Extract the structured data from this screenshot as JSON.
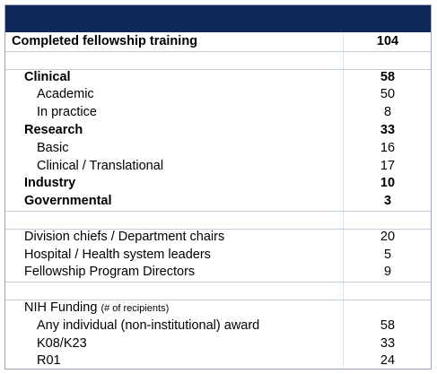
{
  "table": {
    "sections": [
      {
        "rows": [
          {
            "label": "Completed fellowship training",
            "value": 104,
            "bold": true,
            "level": 0
          }
        ]
      },
      {
        "rows": [
          {
            "label": "Clinical",
            "value": 58,
            "bold": true,
            "level": 1
          },
          {
            "label": "Academic",
            "value": 50,
            "bold": false,
            "level": 2
          },
          {
            "label": "In practice",
            "value": 8,
            "bold": false,
            "level": 2
          },
          {
            "label": "Research",
            "value": 33,
            "bold": true,
            "level": 1
          },
          {
            "label": "Basic",
            "value": 16,
            "bold": false,
            "level": 2
          },
          {
            "label": "Clinical / Translational",
            "value": 17,
            "bold": false,
            "level": 2
          },
          {
            "label": "Industry",
            "value": 10,
            "bold": true,
            "level": 1
          },
          {
            "label": "Governmental",
            "value": 3,
            "bold": true,
            "level": 1
          }
        ]
      },
      {
        "rows": [
          {
            "label": "Division chiefs / Department chairs",
            "value": 20,
            "bold": false,
            "level": 1
          },
          {
            "label": "Hospital / Health system leaders",
            "value": 5,
            "bold": false,
            "level": 1
          },
          {
            "label": "Fellowship Program Directors",
            "value": 9,
            "bold": false,
            "level": 1
          }
        ]
      },
      {
        "heading": {
          "label": "NIH Funding",
          "note": "(# of recipients)"
        },
        "rows": [
          {
            "label": "Any individual (non-institutional) award",
            "value": 58,
            "bold": false,
            "level": 2
          },
          {
            "label": "K08/K23",
            "value": 33,
            "bold": false,
            "level": 2
          },
          {
            "label": "R01",
            "value": 24,
            "bold": false,
            "level": 2
          }
        ]
      }
    ]
  }
}
